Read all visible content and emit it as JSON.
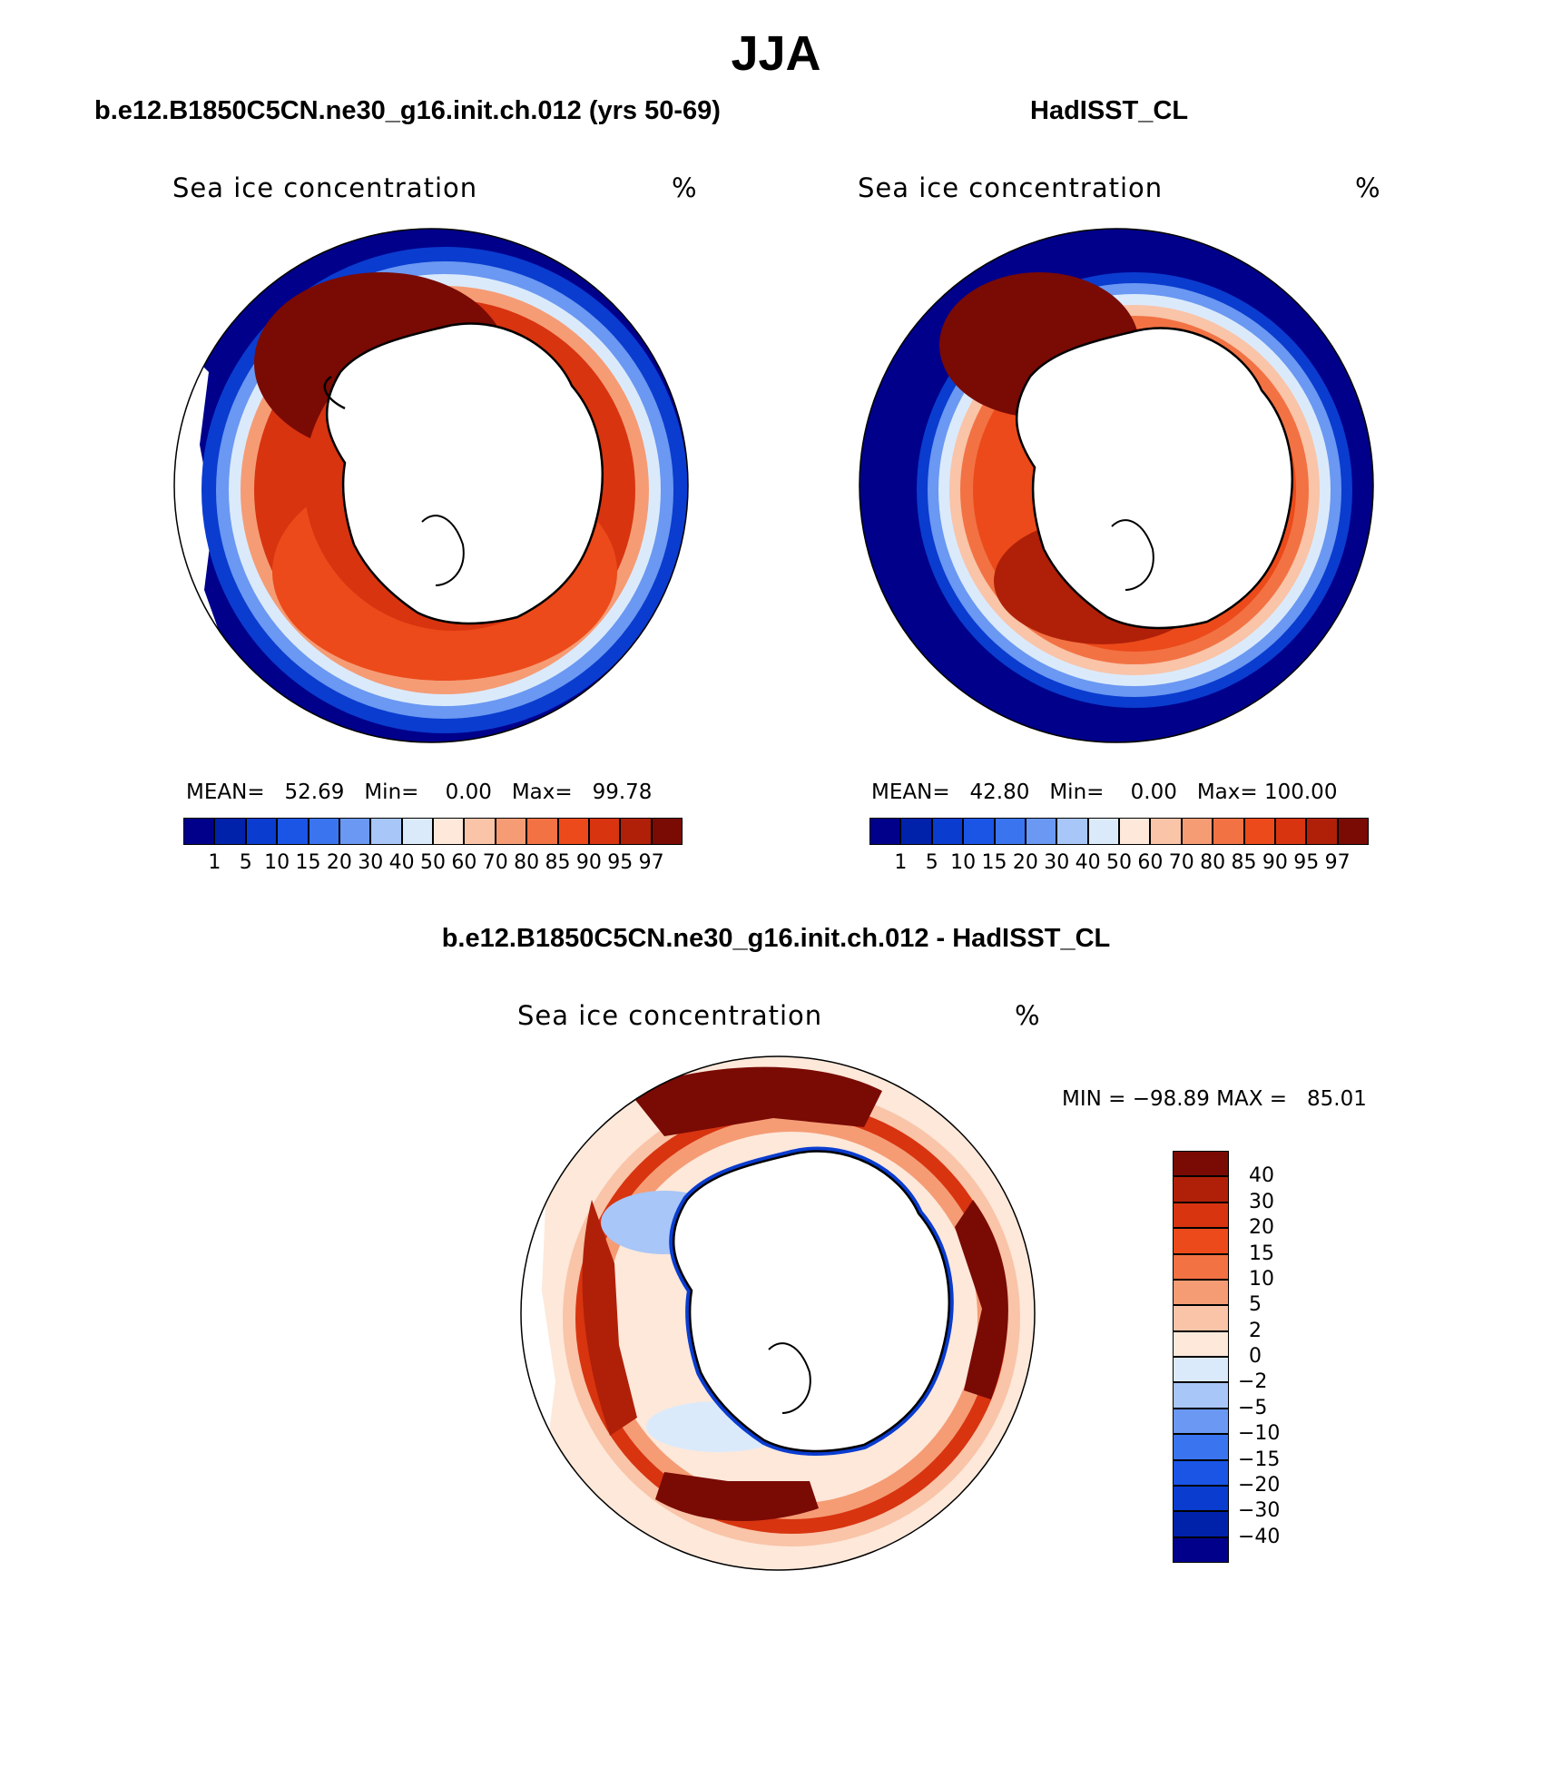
{
  "title": "JJA",
  "panels": [
    {
      "title": "b.e12.B1850C5CN.ne30_g16.init.ch.012 (yrs 50-69)",
      "variable": "Sea ice concentration",
      "unit": "%",
      "stats": {
        "mean_label": "MEAN=",
        "mean": "52.69",
        "min_label": "Min=",
        "min": "0.00",
        "max_label": "Max=",
        "max": "99.78"
      }
    },
    {
      "title": "HadISST_CL",
      "variable": "Sea ice concentration",
      "unit": "%",
      "stats": {
        "mean_label": "MEAN=",
        "mean": "42.80",
        "min_label": "Min=",
        "min": "0.00",
        "max_label": "Max=",
        "max": "100.00"
      }
    }
  ],
  "diff_panel": {
    "title": "b.e12.B1850C5CN.ne30_g16.init.ch.012 - HadISST_CL",
    "variable": "Sea ice concentration",
    "unit": "%",
    "minmax": "MIN = −98.89 MAX =   85.01"
  },
  "colorbar_abs": {
    "labels": [
      "1",
      "5",
      "10",
      "15",
      "20",
      "30",
      "40",
      "50",
      "60",
      "70",
      "80",
      "85",
      "90",
      "95",
      "97"
    ],
    "colors": [
      "#00008b",
      "#0022aa",
      "#0a3ccf",
      "#1a55e6",
      "#3a74ee",
      "#6a98f2",
      "#a8c6f7",
      "#dbeafb",
      "#fde8da",
      "#f9c4a8",
      "#f59c75",
      "#f27244",
      "#ec4a1a",
      "#d83410",
      "#b02008",
      "#7a0a04"
    ]
  },
  "colorbar_diff": {
    "labels": [
      "40",
      "30",
      "20",
      "15",
      "10",
      "5",
      "2",
      "0",
      "−2",
      "−5",
      "−10",
      "−15",
      "−20",
      "−30",
      "−40"
    ],
    "colors": [
      "#7a0a04",
      "#b02008",
      "#d83410",
      "#ec4a1a",
      "#f27244",
      "#f59c75",
      "#f9c4a8",
      "#fde8da",
      "#dbeafb",
      "#a8c6f7",
      "#6a98f2",
      "#3a74ee",
      "#1a55e6",
      "#0a3ccf",
      "#0022aa",
      "#00008b"
    ]
  }
}
